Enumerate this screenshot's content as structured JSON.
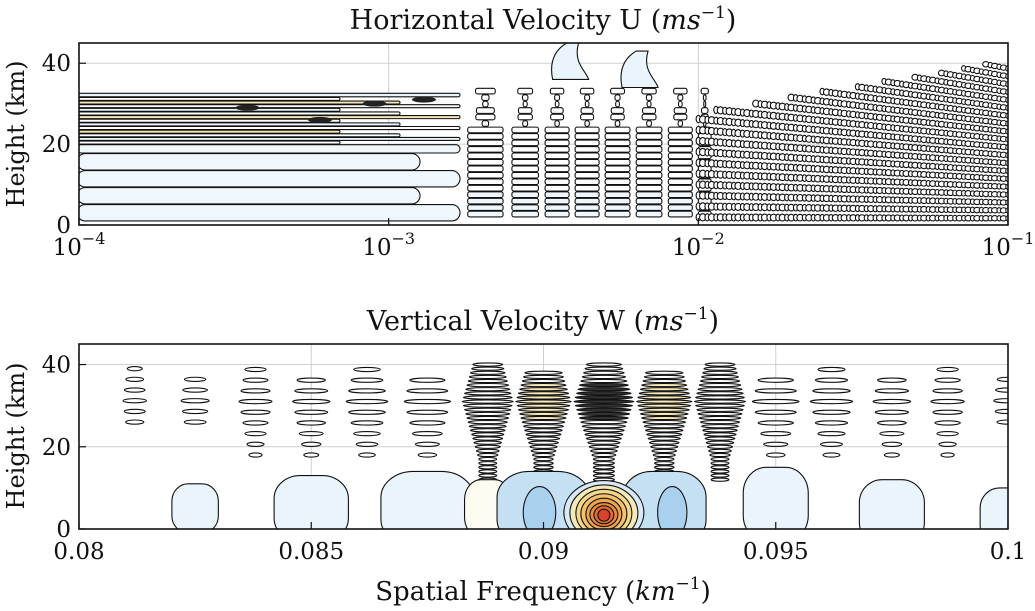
{
  "chart_data": [
    {
      "id": "u",
      "type": "contour",
      "title": "Horizontal Velocity U (ms⁻¹)",
      "title_main": "Horizontal Velocity U",
      "title_unit": "ms",
      "title_exp": "−1",
      "xlabel": "",
      "ylabel": "Height (km)",
      "xscale": "log",
      "xlim": [
        0.0001,
        0.1
      ],
      "ylim": [
        0,
        45
      ],
      "xticks": [
        {
          "value": 0.0001,
          "label_base": "10",
          "label_exp": "−4"
        },
        {
          "value": 0.001,
          "label_base": "10",
          "label_exp": "−3"
        },
        {
          "value": 0.01,
          "label_base": "10",
          "label_exp": "−2"
        },
        {
          "value": 0.1,
          "label_base": "10",
          "label_exp": "−1"
        }
      ],
      "yticks": [
        0,
        20,
        40
      ],
      "grid": true,
      "features": {
        "horizontal_band": {
          "x_range": [
            0.0001,
            0.0017
          ],
          "y_range": [
            0,
            32
          ],
          "dense_y_range": [
            20,
            32
          ]
        },
        "vertical_columns": [
          0.0018,
          0.0025,
          0.0032,
          0.004,
          0.005,
          0.0063,
          0.008,
          0.01
        ],
        "fine_column_range": [
          0.01,
          0.1
        ],
        "lobes": [
          {
            "x": 0.0037,
            "ymin": 36,
            "ymax": 45
          },
          {
            "x": 0.0062,
            "ymin": 34,
            "ymax": 43
          }
        ]
      }
    },
    {
      "id": "w",
      "type": "contour",
      "title": "Vertical Velocity W (ms⁻¹)",
      "title_main": "Vertical Velocity W",
      "title_unit": "ms",
      "title_exp": "−1",
      "xlabel": "Spatial Frequency (km⁻¹)",
      "xlabel_main": "Spatial Frequency",
      "xlabel_unit": "km",
      "xlabel_exp": "−1",
      "ylabel": "Height (km)",
      "xscale": "linear",
      "xlim": [
        0.08,
        0.1
      ],
      "ylim": [
        0,
        45
      ],
      "xticks": [
        {
          "value": 0.08,
          "label": "0.08"
        },
        {
          "value": 0.085,
          "label": "0.085"
        },
        {
          "value": 0.09,
          "label": "0.09"
        },
        {
          "value": 0.095,
          "label": "0.095"
        },
        {
          "value": 0.1,
          "label": "0.1"
        }
      ],
      "yticks": [
        0,
        20,
        40
      ],
      "grid": true,
      "features": {
        "peak": {
          "x": 0.0913,
          "y": 4,
          "description_color": "red"
        },
        "upper_columns_x": [
          0.0812,
          0.0825,
          0.0838,
          0.085,
          0.0862,
          0.0875,
          0.0888,
          0.09,
          0.0913,
          0.0926,
          0.0938,
          0.095,
          0.0962,
          0.0975,
          0.0987,
          0.1
        ],
        "lower_blobs": [
          {
            "x": 0.0825,
            "y": 5,
            "rx": 0.0005,
            "ry": 6,
            "level": 1
          },
          {
            "x": 0.085,
            "y": 5,
            "rx": 0.0008,
            "ry": 8,
            "level": 1
          },
          {
            "x": 0.0875,
            "y": 5,
            "rx": 0.001,
            "ry": 9,
            "level": 1
          },
          {
            "x": 0.0888,
            "y": 5,
            "rx": 0.0005,
            "ry": 7,
            "level": 0
          },
          {
            "x": 0.09,
            "y": 5,
            "rx": 0.001,
            "ry": 9,
            "level": 2
          },
          {
            "x": 0.0926,
            "y": 5,
            "rx": 0.0009,
            "ry": 9,
            "level": 2
          },
          {
            "x": 0.095,
            "y": 6,
            "rx": 0.0007,
            "ry": 9,
            "level": 1
          },
          {
            "x": 0.0975,
            "y": 4,
            "rx": 0.0007,
            "ry": 8,
            "level": 1
          },
          {
            "x": 0.1,
            "y": 3,
            "rx": 0.0006,
            "ry": 7,
            "level": 1
          }
        ]
      }
    }
  ]
}
